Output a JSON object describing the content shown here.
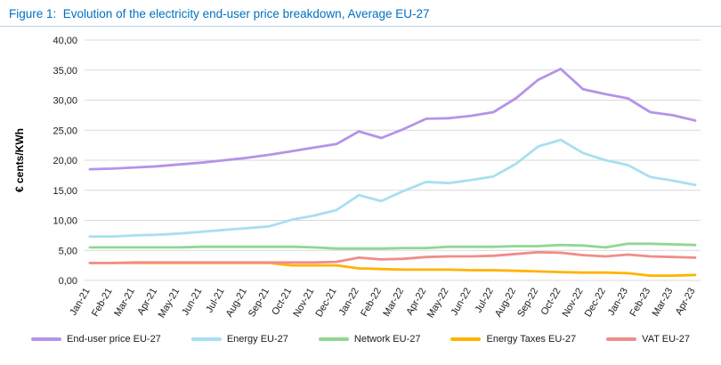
{
  "figure": {
    "title": "Figure 1:  Evolution of the electricity end-user price breakdown, Average EU-27",
    "title_color": "#0070C0"
  },
  "chart_data": {
    "type": "line",
    "title": "Evolution of the electricity end-user price breakdown, Average EU-27",
    "xlabel": "",
    "ylabel": "€ cents/KWh",
    "ylim": [
      0,
      40
    ],
    "ytick_step": 5,
    "ytick_labels": [
      "0,00",
      "5,00",
      "10,00",
      "15,00",
      "20,00",
      "25,00",
      "30,00",
      "35,00",
      "40,00"
    ],
    "grid": "horizontal",
    "legend_position": "bottom",
    "categories": [
      "Jan-21",
      "Feb-21",
      "Mar-21",
      "Apr-21",
      "May-21",
      "Jun-21",
      "Jul-21",
      "Aug-21",
      "Sep-21",
      "Oct-21",
      "Nov-21",
      "Dec-21",
      "Jan-22",
      "Feb-22",
      "Mar-22",
      "Apr-22",
      "May-22",
      "Jun-22",
      "Jul-22",
      "Aug-22",
      "Sep-22",
      "Oct-22",
      "Nov-22",
      "Dec-22",
      "Jan-23",
      "Feb-23",
      "Mar-23",
      "Apr-23"
    ],
    "series": [
      {
        "name": "End-user price EU-27",
        "color": "#b593e8",
        "values": [
          18.5,
          18.6,
          18.8,
          19.0,
          19.3,
          19.6,
          20.0,
          20.4,
          20.9,
          21.5,
          22.1,
          22.7,
          24.8,
          23.7,
          25.2,
          26.9,
          27.0,
          27.4,
          28.0,
          30.3,
          33.4,
          35.2,
          31.8,
          31.0,
          30.3,
          28.0,
          27.5,
          26.6
        ]
      },
      {
        "name": "Energy EU-27",
        "color": "#a8dff2",
        "values": [
          7.3,
          7.3,
          7.5,
          7.6,
          7.8,
          8.1,
          8.4,
          8.7,
          9.0,
          10.1,
          10.8,
          11.7,
          14.2,
          13.2,
          14.9,
          16.4,
          16.2,
          16.7,
          17.3,
          19.4,
          22.3,
          23.4,
          21.2,
          20.0,
          19.2,
          17.2,
          16.6,
          15.9
        ]
      },
      {
        "name": "Network EU-27",
        "color": "#8fd793",
        "values": [
          5.5,
          5.5,
          5.5,
          5.5,
          5.5,
          5.6,
          5.6,
          5.6,
          5.6,
          5.6,
          5.5,
          5.3,
          5.3,
          5.3,
          5.4,
          5.4,
          5.6,
          5.6,
          5.6,
          5.7,
          5.7,
          5.9,
          5.8,
          5.5,
          6.1,
          6.1,
          6.0,
          5.9
        ]
      },
      {
        "name": "Energy Taxes EU-27",
        "color": "#ffb300",
        "values": [
          2.9,
          2.9,
          2.9,
          2.9,
          2.9,
          2.9,
          2.9,
          2.9,
          2.9,
          2.5,
          2.5,
          2.5,
          2.0,
          1.9,
          1.8,
          1.8,
          1.8,
          1.7,
          1.7,
          1.6,
          1.5,
          1.4,
          1.3,
          1.3,
          1.2,
          0.8,
          0.8,
          0.9
        ]
      },
      {
        "name": "VAT EU-27",
        "color": "#f08d8a",
        "values": [
          2.9,
          2.9,
          3.0,
          3.0,
          3.0,
          3.0,
          3.0,
          3.0,
          3.0,
          3.0,
          3.0,
          3.1,
          3.8,
          3.5,
          3.6,
          3.9,
          4.0,
          4.0,
          4.1,
          4.4,
          4.7,
          4.6,
          4.2,
          4.0,
          4.3,
          4.0,
          3.9,
          3.8
        ]
      }
    ]
  }
}
